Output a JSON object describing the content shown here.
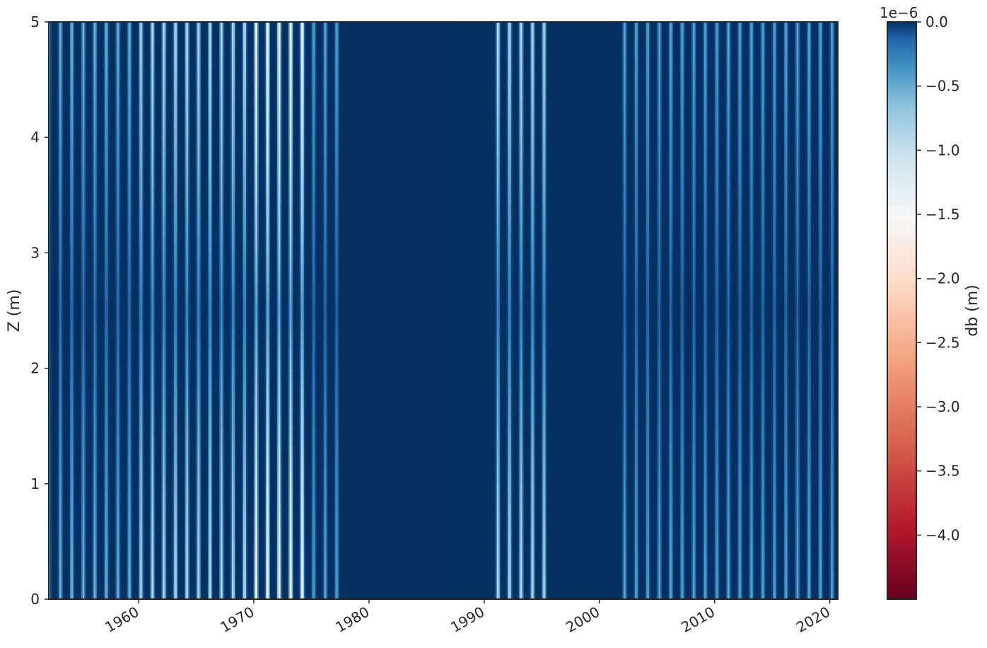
{
  "chart_data": {
    "type": "heatmap",
    "title": "",
    "xlabel": "",
    "ylabel": "Z (m)",
    "x_range": [
      1952.2,
      2020.7
    ],
    "y_range": [
      0,
      5
    ],
    "x_ticks": [
      "1960",
      "1970",
      "1980",
      "1990",
      "2000",
      "2010",
      "2020"
    ],
    "y_ticks": [
      "0",
      "1",
      "2",
      "3",
      "4",
      "5"
    ],
    "x_tick_rotation_deg": 30,
    "grid": false,
    "colormap": "RdBu",
    "colorbar": {
      "label": "db (m)",
      "offset_text": "1e−6",
      "range": [
        -4.5,
        0.0
      ],
      "ticks": [
        "0.0",
        "−0.5",
        "−1.0",
        "−1.5",
        "−2.0",
        "−2.5",
        "−3.0",
        "−3.5",
        "−4.0"
      ],
      "tick_values": [
        0.0,
        -0.5,
        -1.0,
        -1.5,
        -2.0,
        -2.5,
        -3.0,
        -3.5,
        -4.0
      ]
    },
    "cycle_period_years": 1,
    "envelope_segments": [
      {
        "start": 1952.2,
        "end": 1960.0,
        "min_value": -0.6
      },
      {
        "start": 1960.0,
        "end": 1970.0,
        "min_value": -1.0
      },
      {
        "start": 1970.0,
        "end": 1975.0,
        "min_value": -1.6
      },
      {
        "start": 1975.0,
        "end": 1978.0,
        "min_value": -0.5
      },
      {
        "start": 1978.0,
        "end": 1991.0,
        "min_value": 0.0
      },
      {
        "start": 1991.0,
        "end": 1995.5,
        "min_value": -1.0
      },
      {
        "start": 1995.5,
        "end": 2002.0,
        "min_value": 0.0
      },
      {
        "start": 2002.0,
        "end": 2020.7,
        "min_value": -0.5
      }
    ]
  }
}
